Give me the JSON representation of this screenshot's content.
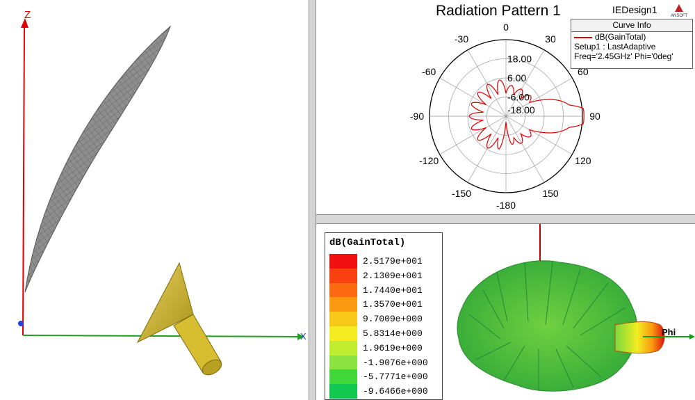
{
  "model_view": {
    "axis_z": "Z",
    "axis_x": "X"
  },
  "polar_plot": {
    "title": "Radiation Pattern 1",
    "design_name": "IEDesign1",
    "brand": "ANSOFT",
    "angle_ticks": [
      "0",
      "30",
      "60",
      "90",
      "120",
      "150",
      "-180",
      "-150",
      "-120",
      "-90",
      "-60",
      "-30"
    ],
    "radial_ticks": [
      "18.00",
      "6.00",
      "-6.00",
      "-18.00"
    ],
    "curve_info": {
      "header": "Curve Info",
      "trace": "dB(GainTotal)",
      "setup": "Setup1 : LastAdaptive",
      "params": "Freq='2.45GHz' Phi='0deg'",
      "trace_color": "#e00000"
    }
  },
  "field_plot": {
    "legend_title": "dB(GainTotal)",
    "levels": [
      {
        "value": "2.5179e+001",
        "color": "#f01010"
      },
      {
        "value": "2.1309e+001",
        "color": "#f84010"
      },
      {
        "value": "1.7440e+001",
        "color": "#fb6a10"
      },
      {
        "value": "1.3570e+001",
        "color": "#fb9a10"
      },
      {
        "value": "9.7009e+000",
        "color": "#f8c818"
      },
      {
        "value": "5.8314e+000",
        "color": "#f2ec20"
      },
      {
        "value": "1.9619e+000",
        "color": "#c0ec30"
      },
      {
        "value": "-1.9076e+000",
        "color": "#8ce240"
      },
      {
        "value": "-5.7771e+000",
        "color": "#40d838"
      },
      {
        "value": "-9.6466e+000",
        "color": "#10c850"
      }
    ],
    "axis_label": "Phi"
  }
}
